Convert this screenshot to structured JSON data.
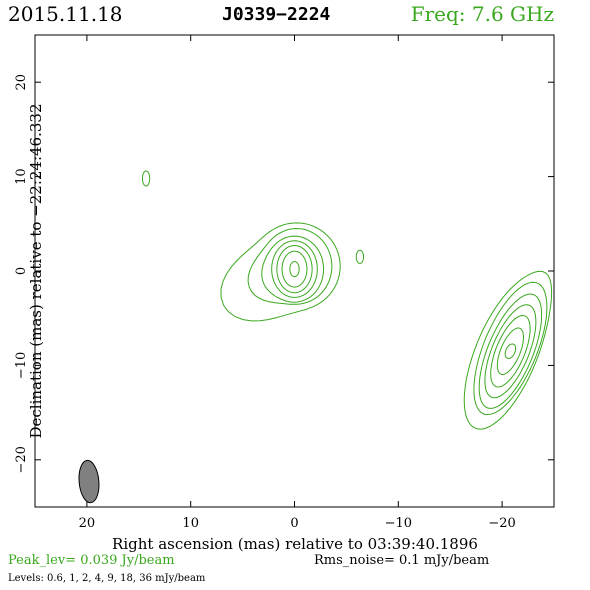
{
  "header": {
    "date": "2015.11.18",
    "source": "J0339−2224",
    "frequency": "Freq: 7.6 GHz"
  },
  "colors": {
    "contour": "#3aa81f",
    "beam": "#808080",
    "text_accent": "#3aa81f"
  },
  "chart_data": {
    "type": "contour",
    "xlabel": "Right ascension (mas) relative to 03:39:40.1896",
    "ylabel": "Declination (mas) relative to −22:24:46.332",
    "xlim": [
      25,
      -25
    ],
    "ylim": [
      -25,
      25
    ],
    "x_ticks": [
      20,
      10,
      0,
      -10,
      -20
    ],
    "x_tick_labels": [
      "20",
      "10",
      "0",
      "−10",
      "−20"
    ],
    "y_ticks": [
      20,
      10,
      0,
      -10,
      -20
    ],
    "y_tick_labels": [
      "20",
      "10",
      "0",
      "−10",
      "−20"
    ],
    "peak_label": "Peak_lev=  0.039 Jy/beam",
    "rms_label": "Rms_noise=   0.1 mJy/beam",
    "levels_label": "Levels: 0.6,    1,    2,    4,    9,   18,   36 mJy/beam",
    "levels": [
      0.6,
      1,
      2,
      4,
      9,
      18,
      36
    ],
    "beam": {
      "x": 19.8,
      "y": -22.3,
      "major": 4.5,
      "minor": 1.9,
      "pa_deg": 5
    },
    "components": [
      {
        "name": "core",
        "x": 0.2,
        "y": 0.2,
        "peak_level": 36
      },
      {
        "name": "secondary",
        "x": -20.8,
        "y": -8.5,
        "peak_level": 9
      },
      {
        "name": "spot",
        "x": 14.3,
        "y": 9.8,
        "peak_level": 0.6
      },
      {
        "name": "knob",
        "x": -6.3,
        "y": 1.5,
        "peak_level": 0.6
      }
    ]
  }
}
